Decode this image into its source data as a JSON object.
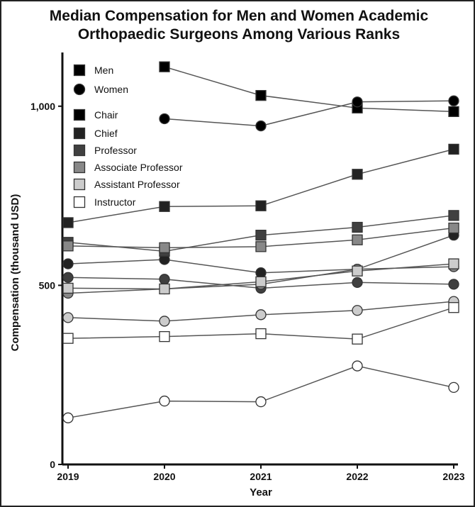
{
  "chart_data": {
    "type": "line",
    "title": "Median Compensation for Men and Women Academic Orthopaedic Surgeons Among Various Ranks",
    "title_lines": [
      "Median Compensation for Men and Women Academic",
      "Orthopaedic Surgeons Among Various Ranks"
    ],
    "xlabel": "Year",
    "ylabel": "Compensation (thousand USD)",
    "x": [
      2019,
      2020,
      2021,
      2022,
      2023
    ],
    "x_tick_labels": [
      "2019",
      "2020",
      "2021",
      "2022",
      "2023"
    ],
    "ylim": [
      0,
      1150
    ],
    "y_ticks": [
      0,
      500,
      1000
    ],
    "y_tick_labels": [
      "0",
      "500",
      "1,000"
    ],
    "legend_position": "top-left",
    "legend": [
      {
        "label": "Men",
        "marker": "square",
        "fill": "#000000"
      },
      {
        "label": "Women",
        "marker": "circle",
        "fill": "#000000"
      },
      {
        "label": "Chair",
        "marker": "square",
        "fill": "#000000"
      },
      {
        "label": "Chief",
        "marker": "square",
        "fill": "#222222"
      },
      {
        "label": "Professor",
        "marker": "square",
        "fill": "#404040"
      },
      {
        "label": "Associate Professor",
        "marker": "square",
        "fill": "#888888"
      },
      {
        "label": "Assistant Professor",
        "marker": "square",
        "fill": "#cccccc"
      },
      {
        "label": "Instructor",
        "marker": "square",
        "fill": "#ffffff"
      }
    ],
    "series": [
      {
        "name": "Men - Chair",
        "marker": "square",
        "fill": "#000000",
        "values": [
          null,
          1110,
          1030,
          995,
          985
        ]
      },
      {
        "name": "Women - Chair",
        "marker": "circle",
        "fill": "#000000",
        "values": [
          null,
          965,
          945,
          1012,
          1015
        ]
      },
      {
        "name": "Men - Chief",
        "marker": "square",
        "fill": "#222222",
        "values": [
          675,
          720,
          722,
          810,
          880
        ]
      },
      {
        "name": "Women - Chief",
        "marker": "circle",
        "fill": "#222222",
        "values": [
          560,
          572,
          535,
          545,
          640
        ]
      },
      {
        "name": "Men - Professor",
        "marker": "square",
        "fill": "#404040",
        "values": [
          620,
          595,
          640,
          662,
          695
        ]
      },
      {
        "name": "Women - Professor",
        "marker": "circle",
        "fill": "#404040",
        "values": [
          522,
          517,
          492,
          508,
          503
        ]
      },
      {
        "name": "Men - Associate Professor",
        "marker": "square",
        "fill": "#888888",
        "values": [
          610,
          605,
          608,
          627,
          660
        ]
      },
      {
        "name": "Women - Associate Professor",
        "marker": "circle",
        "fill": "#888888",
        "values": [
          478,
          490,
          503,
          545,
          552
        ]
      },
      {
        "name": "Men - Assistant Professor",
        "marker": "square",
        "fill": "#cccccc",
        "values": [
          492,
          490,
          510,
          540,
          560
        ]
      },
      {
        "name": "Women - Assistant Professor",
        "marker": "circle",
        "fill": "#cccccc",
        "values": [
          410,
          400,
          418,
          430,
          455
        ]
      },
      {
        "name": "Men - Instructor",
        "marker": "square",
        "fill": "#ffffff",
        "values": [
          352,
          357,
          365,
          350,
          438
        ]
      },
      {
        "name": "Women - Instructor",
        "marker": "circle",
        "fill": "#ffffff",
        "values": [
          130,
          177,
          175,
          275,
          215
        ]
      }
    ]
  }
}
